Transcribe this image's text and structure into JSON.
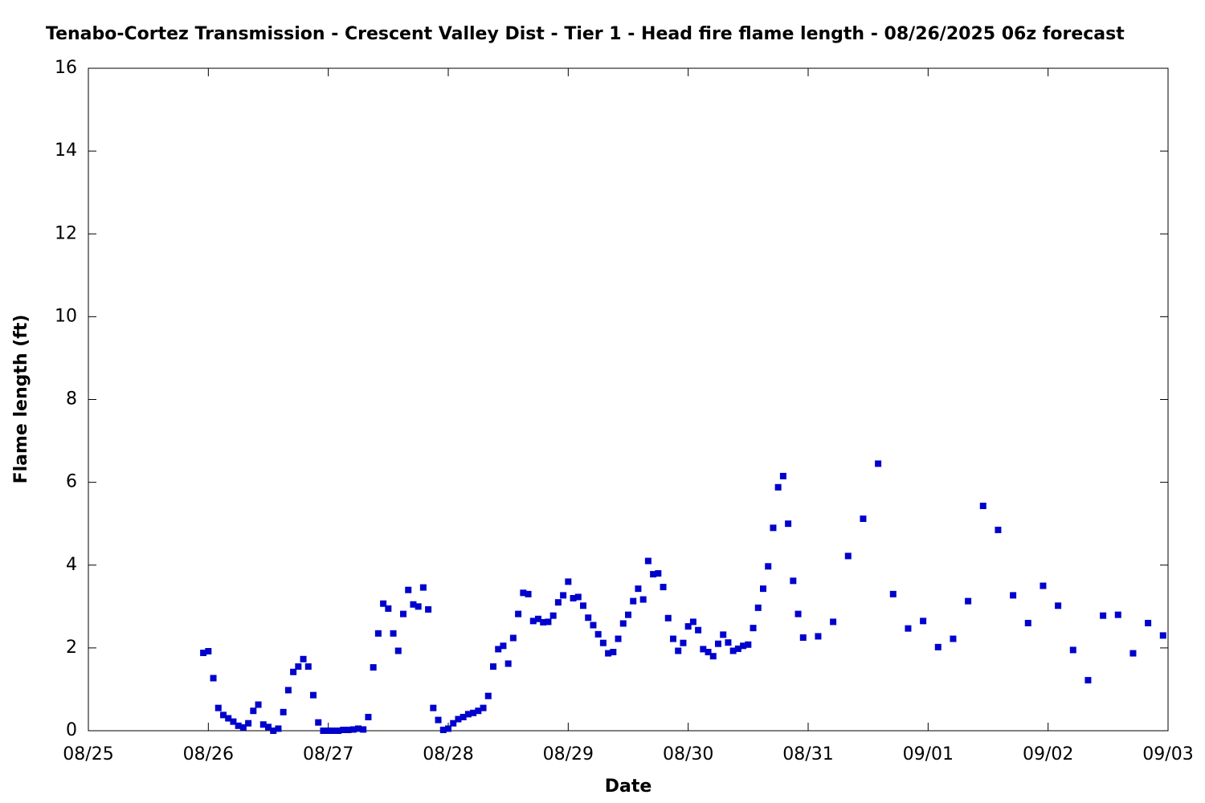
{
  "chart_data": {
    "type": "scatter",
    "title": "Tenabo-Cortez Transmission - Crescent Valley Dist - Tier 1 - Head fire flame length - 08/26/2025 06z forecast",
    "x_label": "Date",
    "y_label": "Flame length (ft)",
    "color": "#0000cc",
    "x": [
      23,
      24,
      25,
      26,
      27,
      28,
      29,
      30,
      31,
      32,
      33,
      34,
      35,
      36,
      37,
      38,
      39,
      40,
      41,
      42,
      43,
      44,
      45,
      46,
      47,
      48,
      49,
      50,
      51,
      52,
      53,
      54,
      55,
      56,
      57,
      58,
      59,
      60,
      61,
      62,
      63,
      64,
      65,
      66,
      67,
      68,
      69,
      70,
      71,
      72,
      73,
      74,
      75,
      76,
      77,
      78,
      79,
      80,
      81,
      82,
      83,
      84,
      85,
      86,
      87,
      88,
      89,
      90,
      91,
      92,
      93,
      94,
      95,
      96,
      97,
      98,
      99,
      100,
      101,
      102,
      103,
      104,
      105,
      106,
      107,
      108,
      109,
      110,
      111,
      112,
      113,
      114,
      115,
      116,
      117,
      118,
      119,
      120,
      121,
      122,
      123,
      124,
      125,
      126,
      127,
      128,
      129,
      130,
      131,
      132,
      133,
      134,
      135,
      136,
      137,
      138,
      139,
      140,
      141,
      142,
      143,
      146,
      149,
      152,
      155,
      158,
      161,
      164,
      167,
      170,
      173,
      176,
      179,
      182,
      185,
      188,
      191,
      194,
      197,
      200,
      203,
      206,
      209,
      212,
      215
    ],
    "values": [
      1.88,
      1.92,
      1.27,
      0.55,
      0.38,
      0.3,
      0.22,
      0.12,
      0.08,
      0.18,
      0.48,
      0.63,
      0.15,
      0.09,
      0.0,
      0.05,
      0.45,
      0.98,
      1.42,
      1.55,
      1.73,
      1.55,
      0.86,
      0.2,
      0.0,
      0.0,
      0.0,
      0.0,
      0.02,
      0.02,
      0.03,
      0.05,
      0.03,
      0.33,
      1.53,
      2.35,
      3.07,
      2.95,
      2.35,
      1.93,
      2.82,
      3.4,
      3.05,
      3.0,
      3.46,
      2.93,
      0.55,
      0.26,
      0.02,
      0.05,
      0.18,
      0.28,
      0.33,
      0.4,
      0.43,
      0.48,
      0.55,
      0.84,
      1.55,
      1.97,
      2.05,
      1.62,
      2.24,
      2.82,
      3.33,
      3.3,
      2.65,
      2.7,
      2.62,
      2.63,
      2.78,
      3.1,
      3.27,
      3.6,
      3.2,
      3.23,
      3.02,
      2.73,
      2.55,
      2.33,
      2.12,
      1.87,
      1.9,
      2.22,
      2.59,
      2.8,
      3.13,
      3.43,
      3.17,
      4.1,
      3.78,
      3.8,
      3.47,
      2.72,
      2.22,
      1.93,
      2.12,
      2.52,
      2.63,
      2.43,
      1.97,
      1.9,
      1.8,
      2.1,
      2.32,
      2.13,
      1.93,
      1.98,
      2.05,
      2.08,
      2.48,
      2.97,
      3.43,
      3.97,
      4.9,
      5.88,
      6.15,
      5.0,
      3.62,
      2.82,
      2.25,
      2.28,
      2.63,
      4.22,
      5.12,
      6.45,
      3.3,
      2.47,
      2.65,
      2.02,
      2.22,
      3.13,
      5.43,
      4.85,
      3.27,
      2.6,
      3.5,
      3.02,
      1.95,
      1.22,
      2.78,
      2.8,
      1.87,
      2.6,
      2.3
    ],
    "xlim": [
      0,
      216
    ],
    "xticks": [
      {
        "value": 0,
        "label": "08/25"
      },
      {
        "value": 24,
        "label": "08/26"
      },
      {
        "value": 48,
        "label": "08/27"
      },
      {
        "value": 72,
        "label": "08/28"
      },
      {
        "value": 96,
        "label": "08/29"
      },
      {
        "value": 120,
        "label": "08/30"
      },
      {
        "value": 144,
        "label": "08/31"
      },
      {
        "value": 168,
        "label": "09/01"
      },
      {
        "value": 192,
        "label": "09/02"
      },
      {
        "value": 216,
        "label": "09/03"
      }
    ],
    "ylim": [
      0,
      16
    ],
    "yticks": [
      0,
      2,
      4,
      6,
      8,
      10,
      12,
      14,
      16
    ],
    "grid": false
  }
}
